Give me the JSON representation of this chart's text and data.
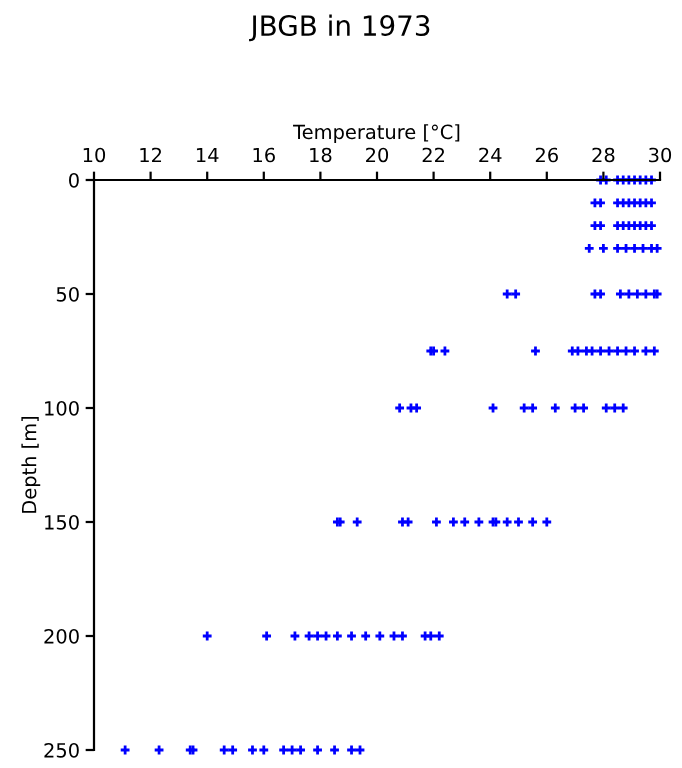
{
  "chart_data": {
    "type": "scatter",
    "title": "JBGB in 1973",
    "xlabel": "Temperature [°C]",
    "ylabel": "Depth [m]",
    "xlim": [
      10,
      30
    ],
    "xticks": [
      10,
      12,
      14,
      16,
      18,
      20,
      22,
      24,
      26,
      28,
      30
    ],
    "ylim": [
      250,
      0
    ],
    "yticks": [
      0,
      50,
      100,
      150,
      200,
      250
    ],
    "grid": false,
    "marker": "cross",
    "series": [
      {
        "color": "#0000ff",
        "x": [
          27.9,
          28.1,
          28.5,
          28.7,
          28.9,
          29.1,
          29.3,
          29.5,
          29.7,
          27.7,
          27.9,
          28.5,
          28.7,
          28.9,
          29.1,
          29.3,
          29.5,
          29.7,
          27.7,
          27.9,
          28.5,
          28.7,
          28.9,
          29.1,
          29.3,
          29.5,
          29.7,
          27.5,
          28.0,
          28.5,
          28.8,
          29.1,
          29.4,
          29.7,
          29.9,
          24.6,
          24.9,
          27.7,
          27.9,
          28.6,
          28.9,
          29.2,
          29.5,
          29.8,
          29.9,
          21.9,
          22.0,
          22.4,
          25.6,
          26.9,
          27.1,
          27.4,
          27.6,
          27.9,
          28.2,
          28.5,
          28.8,
          29.1,
          29.5,
          29.8,
          20.8,
          21.2,
          21.4,
          24.1,
          25.2,
          25.5,
          26.3,
          27.0,
          27.3,
          28.1,
          28.4,
          28.7,
          18.6,
          18.7,
          19.3,
          20.9,
          21.1,
          22.1,
          22.7,
          23.1,
          23.6,
          24.1,
          24.2,
          24.6,
          25.0,
          25.5,
          26.0,
          14.0,
          16.1,
          17.1,
          17.6,
          17.9,
          18.2,
          18.6,
          19.1,
          19.6,
          20.1,
          20.6,
          20.9,
          21.7,
          21.9,
          22.2,
          11.1,
          12.3,
          13.4,
          13.5,
          14.6,
          14.9,
          15.6,
          16.0,
          16.7,
          17.0,
          17.3,
          17.9,
          18.5,
          19.1,
          19.4
        ],
        "values": [
          0,
          0,
          0,
          0,
          0,
          0,
          0,
          0,
          0,
          10,
          10,
          10,
          10,
          10,
          10,
          10,
          10,
          10,
          20,
          20,
          20,
          20,
          20,
          20,
          20,
          20,
          20,
          30,
          30,
          30,
          30,
          30,
          30,
          30,
          30,
          50,
          50,
          50,
          50,
          50,
          50,
          50,
          50,
          50,
          50,
          75,
          75,
          75,
          75,
          75,
          75,
          75,
          75,
          75,
          75,
          75,
          75,
          75,
          75,
          75,
          100,
          100,
          100,
          100,
          100,
          100,
          100,
          100,
          100,
          100,
          100,
          100,
          150,
          150,
          150,
          150,
          150,
          150,
          150,
          150,
          150,
          150,
          150,
          150,
          150,
          150,
          150,
          200,
          200,
          200,
          200,
          200,
          200,
          200,
          200,
          200,
          200,
          200,
          200,
          200,
          200,
          200,
          250,
          250,
          250,
          250,
          250,
          250,
          250,
          250,
          250,
          250,
          250,
          250,
          250,
          250,
          250
        ]
      }
    ]
  }
}
